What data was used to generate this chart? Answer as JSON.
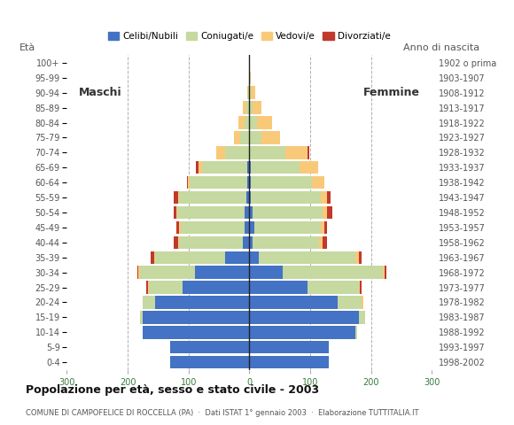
{
  "age_groups": [
    "0-4",
    "5-9",
    "10-14",
    "15-19",
    "20-24",
    "25-29",
    "30-34",
    "35-39",
    "40-44",
    "45-49",
    "50-54",
    "55-59",
    "60-64",
    "65-69",
    "70-74",
    "75-79",
    "80-84",
    "85-89",
    "90-94",
    "95-99",
    "100+"
  ],
  "birth_years": [
    "1998-2002",
    "1993-1997",
    "1988-1992",
    "1983-1987",
    "1978-1982",
    "1973-1977",
    "1968-1972",
    "1963-1967",
    "1958-1962",
    "1953-1957",
    "1948-1952",
    "1943-1947",
    "1938-1942",
    "1933-1937",
    "1928-1932",
    "1923-1927",
    "1918-1922",
    "1913-1917",
    "1908-1912",
    "1903-1907",
    "1902 o prima"
  ],
  "males": {
    "celibe": [
      130,
      130,
      175,
      175,
      155,
      110,
      90,
      40,
      10,
      8,
      8,
      5,
      3,
      3,
      0,
      0,
      0,
      0,
      0,
      0,
      0
    ],
    "coniugato": [
      0,
      0,
      0,
      5,
      20,
      55,
      90,
      115,
      105,
      105,
      110,
      110,
      95,
      75,
      40,
      15,
      8,
      5,
      2,
      0,
      0
    ],
    "vedovo": [
      0,
      0,
      0,
      0,
      0,
      2,
      2,
      2,
      2,
      2,
      2,
      2,
      3,
      5,
      15,
      10,
      10,
      5,
      2,
      0,
      0
    ],
    "divorziato": [
      0,
      0,
      0,
      0,
      0,
      2,
      2,
      5,
      8,
      5,
      5,
      8,
      2,
      5,
      0,
      0,
      0,
      0,
      0,
      0,
      0
    ]
  },
  "females": {
    "nubile": [
      130,
      130,
      175,
      180,
      145,
      95,
      55,
      15,
      5,
      8,
      5,
      3,
      3,
      3,
      0,
      0,
      0,
      0,
      0,
      0,
      0
    ],
    "coniugata": [
      0,
      0,
      3,
      10,
      40,
      85,
      165,
      160,
      110,
      110,
      115,
      115,
      100,
      80,
      60,
      20,
      12,
      5,
      2,
      0,
      0
    ],
    "vedova": [
      0,
      0,
      0,
      0,
      2,
      2,
      3,
      5,
      5,
      5,
      8,
      10,
      20,
      30,
      35,
      30,
      25,
      15,
      8,
      2,
      0
    ],
    "divorziata": [
      0,
      0,
      0,
      0,
      0,
      2,
      2,
      5,
      8,
      5,
      8,
      5,
      0,
      0,
      3,
      0,
      0,
      0,
      0,
      0,
      0
    ]
  },
  "colors": {
    "celibe_nubile": "#4472C4",
    "coniugato_coniugata": "#c5d9a0",
    "vedovo_vedova": "#f9c97a",
    "divorziato_divorziata": "#c0392b"
  },
  "xlim": 300,
  "title": "Popolazione per età, sesso e stato civile - 2003",
  "subtitle": "COMUNE DI CAMPOFELICE DI ROCCELLA (PA)  ·  Dati ISTAT 1° gennaio 2003  ·  Elaborazione TUTTITALIA.IT",
  "background_color": "#ffffff",
  "grid_color": "#b0b0b0",
  "bar_height": 0.85
}
